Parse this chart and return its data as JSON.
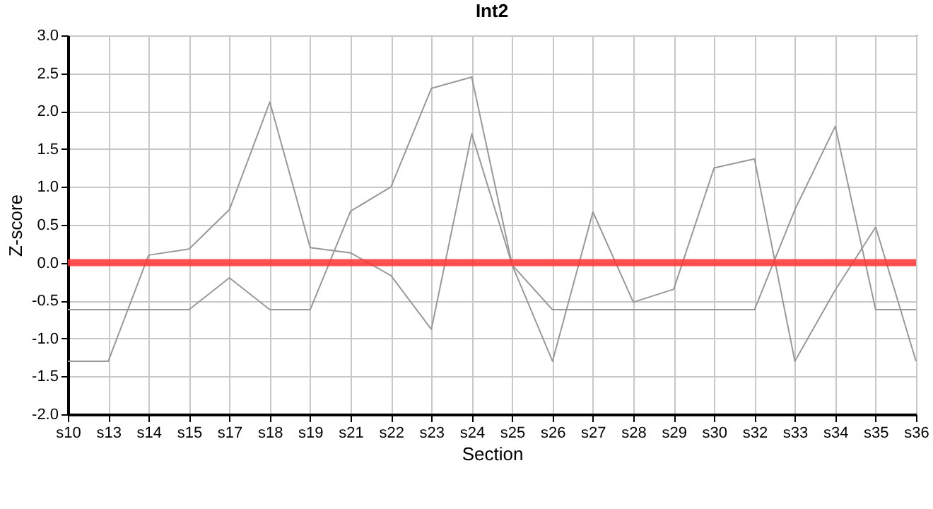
{
  "chart_data": {
    "type": "line",
    "title": "Int2",
    "xlabel": "Section",
    "ylabel": "Z-score",
    "categories": [
      "s10",
      "s13",
      "s14",
      "s15",
      "s17",
      "s18",
      "s19",
      "s21",
      "s22",
      "s23",
      "s24",
      "s25",
      "s26",
      "s27",
      "s28",
      "s29",
      "s30",
      "s32",
      "s33",
      "s34",
      "s35",
      "s36"
    ],
    "series": [
      {
        "color": "#999999",
        "values": [
          -1.3,
          -1.3,
          0.1,
          0.18,
          0.7,
          2.12,
          0.2,
          0.13,
          -0.17,
          -0.88,
          1.7,
          -0.03,
          -1.3,
          0.67,
          -0.52,
          -0.35,
          1.25,
          1.37,
          -1.3,
          -0.36,
          0.47,
          -1.3
        ]
      },
      {
        "color": "#999999",
        "values": [
          -0.62,
          -0.62,
          -0.62,
          -0.62,
          -0.2,
          -0.62,
          -0.62,
          0.68,
          1.0,
          2.3,
          2.45,
          -0.03,
          -0.62,
          -0.62,
          -0.62,
          -0.62,
          -0.62,
          -0.62,
          0.7,
          1.8,
          -0.62,
          -0.62
        ]
      }
    ],
    "ylim": [
      -2,
      3
    ],
    "yticks": [
      {
        "value": -2,
        "label": "-2.0"
      },
      {
        "value": -1.5,
        "label": "-1.5"
      },
      {
        "value": -1,
        "label": "-1.0"
      },
      {
        "value": -0.5,
        "label": "-0.5"
      },
      {
        "value": 0,
        "label": "0.0"
      },
      {
        "value": 0.5,
        "label": "0.5"
      },
      {
        "value": 1,
        "label": "1.0"
      },
      {
        "value": 1.5,
        "label": "1.5"
      },
      {
        "value": 2,
        "label": "2.0"
      },
      {
        "value": 2.5,
        "label": "2.5"
      },
      {
        "value": 3,
        "label": "3.0"
      }
    ],
    "ref_lines": [
      {
        "axis": "y",
        "value": 0,
        "color": "#ff3333"
      }
    ],
    "grid": true,
    "marker": "none",
    "line_style": "solid"
  }
}
